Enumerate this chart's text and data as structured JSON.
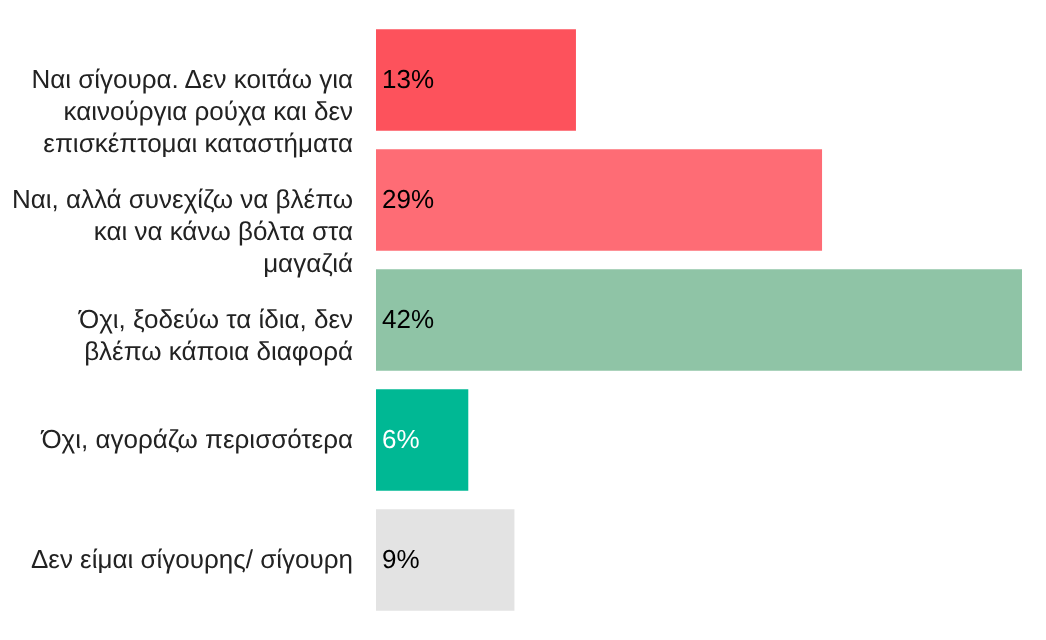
{
  "chart_data": {
    "type": "bar",
    "orientation": "horizontal",
    "categories": [
      "Ναι σίγουρα. Δεν κοιτάω για καινούργια ρούχα και δεν επισκέπτομαι καταστήματα",
      "Ναι, αλλά συνεχίζω να βλέπω και να κάνω βόλτα στα μαγαζιά",
      "Όχι, ξοδεύω τα ίδια, δεν βλέπω κάποια διαφορά",
      "Όχι, αγοράζω περισσότερα",
      "Δεν είμαι σίγουρης/ σίγουρη"
    ],
    "values": [
      13,
      29,
      42,
      6,
      9
    ],
    "colors": [
      "#fd525c",
      "#fe6c75",
      "#8fc4a6",
      "#00b894",
      "#e3e3e3"
    ],
    "value_labels": [
      "13%",
      "29%",
      "42%",
      "6%",
      "9%"
    ],
    "grid": false
  }
}
